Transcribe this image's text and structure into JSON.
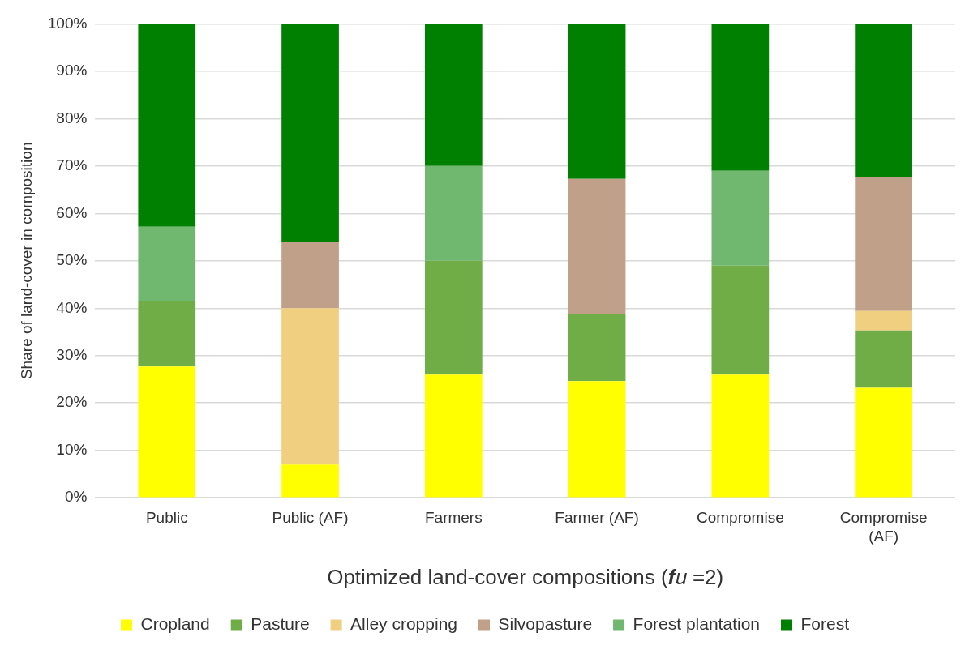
{
  "chart_data": {
    "type": "bar",
    "stacked": true,
    "xlabel": "Optimized land-cover compositions (𝒇𝑢 =2)",
    "ylabel": "Share of land-cover in composition",
    "categories": [
      "Public",
      "Public (AF)",
      "Farmers",
      "Farmer (AF)",
      "Compromise",
      "Compromise (AF)"
    ],
    "series": [
      {
        "name": "Cropland",
        "color": "#ffff00",
        "values": [
          27.7,
          7,
          26,
          24.6,
          26,
          23.2
        ]
      },
      {
        "name": "Pasture",
        "color": "#70ad47",
        "values": [
          13.9,
          null,
          24,
          14.1,
          23,
          12.1
        ]
      },
      {
        "name": "Alley cropping",
        "color": "#f0cf80",
        "values": [
          null,
          33,
          null,
          null,
          null,
          4.1
        ]
      },
      {
        "name": "Silvopasture",
        "color": "#c0a088",
        "values": [
          null,
          14,
          null,
          28.6,
          null,
          28.3
        ]
      },
      {
        "name": "Forest plantation",
        "color": "#70b870",
        "values": [
          15.6,
          null,
          20,
          null,
          20,
          null
        ]
      },
      {
        "name": "Forest",
        "color": "#008000",
        "values": [
          42.8,
          46,
          30,
          32.7,
          31,
          32.3
        ]
      }
    ],
    "ylim": [
      0,
      100
    ],
    "yticks": [
      {
        "value": 0,
        "label": "0%"
      },
      {
        "value": 10,
        "label": "10%"
      },
      {
        "value": 20,
        "label": "20%"
      },
      {
        "value": 30,
        "label": "30%"
      },
      {
        "value": 40,
        "label": "40%"
      },
      {
        "value": 50,
        "label": "50%"
      },
      {
        "value": 60,
        "label": "60%"
      },
      {
        "value": 70,
        "label": "70%"
      },
      {
        "value": 80,
        "label": "80%"
      },
      {
        "value": 90,
        "label": "90%"
      },
      {
        "value": 100,
        "label": "100%"
      }
    ],
    "grid": "y",
    "legend": "bottom"
  }
}
